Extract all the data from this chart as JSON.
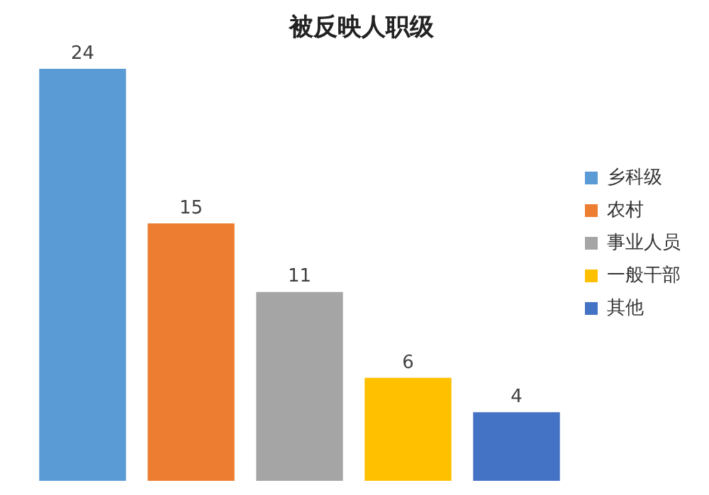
{
  "chart_data": {
    "type": "bar",
    "title": "被反映人职级",
    "categories": [
      null,
      null,
      null,
      null,
      null
    ],
    "series": [
      {
        "name": "乡科级",
        "color": "#5b9bd5",
        "values": [
          24,
          null,
          null,
          null,
          null
        ]
      },
      {
        "name": "农村",
        "color": "#ed7d31",
        "values": [
          null,
          15,
          null,
          null,
          null
        ]
      },
      {
        "name": "事业人员",
        "color": "#a5a5a5",
        "values": [
          null,
          null,
          11,
          null,
          null
        ]
      },
      {
        "name": "一般干部",
        "color": "#ffc000",
        "values": [
          null,
          null,
          null,
          6,
          null
        ]
      },
      {
        "name": "其他",
        "color": "#4472c4",
        "values": [
          null,
          null,
          null,
          null,
          4
        ]
      }
    ],
    "stacked": true,
    "data_labels": true,
    "legend": "right"
  }
}
